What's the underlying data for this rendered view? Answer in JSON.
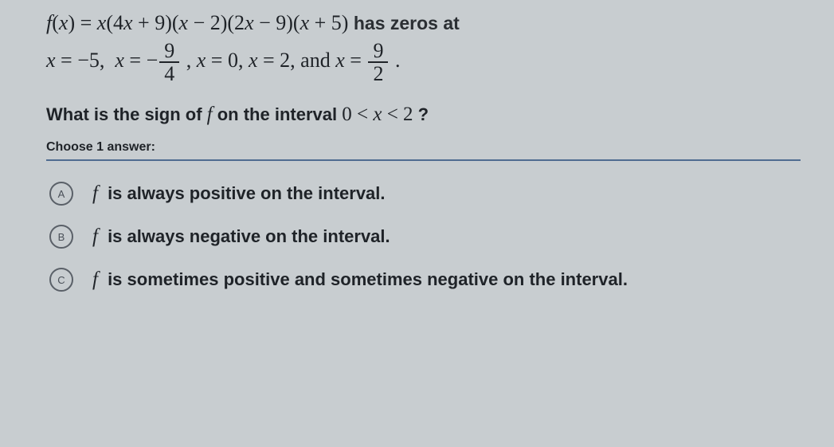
{
  "problem": {
    "expr_html": "<span class='mi'>f</span>(<span class='mi'>x</span>) = <span class='mi'>x</span>(4<span class='mi'>x</span> + 9)(<span class='mi'>x</span> − 2)(2<span class='mi'>x</span> − 9)(<span class='mi'>x</span> + 5)",
    "zeros_lead": " has zeros at ",
    "zeros_html": "<span class='mi'>x</span> = −5,&nbsp;&nbsp;<span class='mi'>x</span> = −<span class='frac'><span class='n'>9</span><span class='d'>4</span></span> , <span class='mi'>x</span> = 0, <span class='mi'>x</span> = 2, and <span class='mi'>x</span> = <span class='frac'><span class='n'>9</span><span class='d'>2</span></span> ."
  },
  "question": {
    "prefix": "What is the sign of ",
    "fn": "f",
    "mid": " on the interval ",
    "interval": "0 < <span class='mi'>x</span> < 2",
    "suffix": " ?"
  },
  "choose": "Choose 1 answer:",
  "options": [
    {
      "letter": "A",
      "fn": "f",
      "text": " is always positive on the interval."
    },
    {
      "letter": "B",
      "fn": "f",
      "text": " is always negative on the interval."
    },
    {
      "letter": "C",
      "fn": "f",
      "text": " is sometimes positive and sometimes negative on the interval."
    }
  ],
  "colors": {
    "bg": "#c8cdd0",
    "text": "#1f2328",
    "rule": "#3a5a85",
    "badge_border": "#5a6068"
  }
}
